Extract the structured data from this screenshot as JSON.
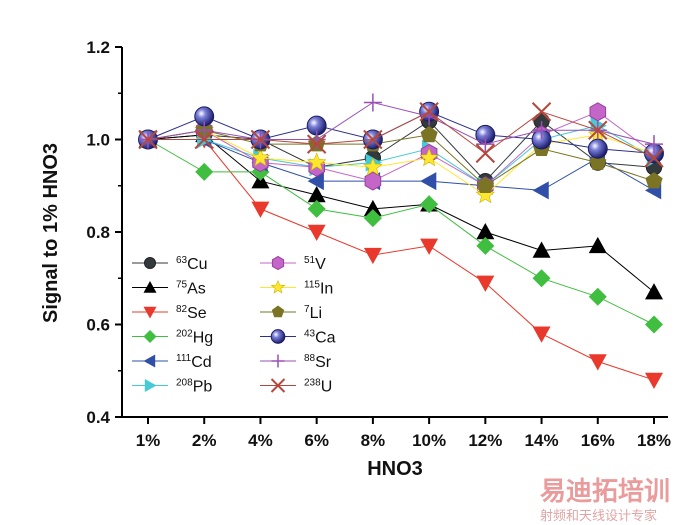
{
  "chart_data": {
    "type": "line",
    "title": "",
    "xlabel": "HNO3",
    "ylabel": "Signal to 1% HNO3",
    "categories": [
      "1%",
      "2%",
      "4%",
      "6%",
      "8%",
      "10%",
      "12%",
      "14%",
      "16%",
      "18%"
    ],
    "ylim": [
      0.4,
      1.2
    ],
    "yticks": [
      "0.4",
      "0.6",
      "0.8",
      "1.0",
      "1.2"
    ],
    "grid": false,
    "legend_position": "bottom-left",
    "series": [
      {
        "mass": "63",
        "element": "Cu",
        "color": "#333a3d",
        "marker": "circle",
        "values": [
          1.0,
          1.01,
          1.0,
          0.94,
          0.96,
          1.04,
          0.91,
          1.04,
          0.95,
          0.94
        ]
      },
      {
        "mass": "75",
        "element": "As",
        "color": "#000000",
        "marker": "triangle-up",
        "values": [
          1.0,
          1.01,
          0.91,
          0.88,
          0.85,
          0.86,
          0.8,
          0.76,
          0.77,
          0.67
        ]
      },
      {
        "mass": "82",
        "element": "Se",
        "color": "#e8392c",
        "marker": "triangle-down",
        "values": [
          1.0,
          1.0,
          0.85,
          0.8,
          0.75,
          0.77,
          0.69,
          0.58,
          0.52,
          0.48
        ]
      },
      {
        "mass": "202",
        "element": "Hg",
        "color": "#3fbe3f",
        "marker": "diamond",
        "values": [
          1.0,
          0.93,
          0.93,
          0.85,
          0.83,
          0.86,
          0.77,
          0.7,
          0.66,
          0.6
        ]
      },
      {
        "mass": "111",
        "element": "Cd",
        "color": "#2f4fa8",
        "marker": "triangle-left",
        "values": [
          1.0,
          1.0,
          0.95,
          0.91,
          0.91,
          0.91,
          0.9,
          0.89,
          0.96,
          0.89
        ]
      },
      {
        "mass": "208",
        "element": "Pb",
        "color": "#44cbd6",
        "marker": "triangle-right",
        "values": [
          1.0,
          1.0,
          0.96,
          0.94,
          0.95,
          0.98,
          0.9,
          1.0,
          1.03,
          0.96
        ]
      },
      {
        "mass": "51",
        "element": "V",
        "color": "#c466c8",
        "marker": "hexagon",
        "values": [
          1.0,
          1.02,
          0.95,
          0.94,
          0.91,
          0.97,
          0.9,
          1.01,
          1.06,
          0.97
        ]
      },
      {
        "mass": "115",
        "element": "In",
        "color": "#ffe72e",
        "marker": "star",
        "values": [
          1.0,
          1.02,
          0.96,
          0.95,
          0.94,
          0.96,
          0.88,
          0.99,
          1.01,
          0.97
        ]
      },
      {
        "mass": "7",
        "element": "Li",
        "color": "#7a7424",
        "marker": "pentagon",
        "values": [
          1.0,
          1.02,
          0.99,
          0.99,
          0.99,
          1.01,
          0.9,
          0.98,
          0.95,
          0.91
        ]
      },
      {
        "mass": "43",
        "element": "Ca",
        "color": "#2c2f8c",
        "marker": "sphere",
        "values": [
          1.0,
          1.05,
          1.0,
          1.03,
          1.0,
          1.06,
          1.01,
          1.0,
          0.98,
          0.97
        ]
      },
      {
        "mass": "88",
        "element": "Sr",
        "color": "#9a4fb5",
        "marker": "plus",
        "values": [
          1.0,
          1.02,
          1.0,
          1.0,
          1.08,
          1.05,
          0.99,
          1.02,
          1.02,
          0.99
        ]
      },
      {
        "mass": "238",
        "element": "U",
        "color": "#b5483e",
        "marker": "cross",
        "values": [
          1.0,
          1.0,
          1.0,
          0.99,
          1.0,
          1.06,
          0.97,
          1.06,
          1.02,
          0.96
        ]
      }
    ]
  },
  "watermark": {
    "line1": "易迪拓培训",
    "line2": "射频和天线设计专家"
  }
}
